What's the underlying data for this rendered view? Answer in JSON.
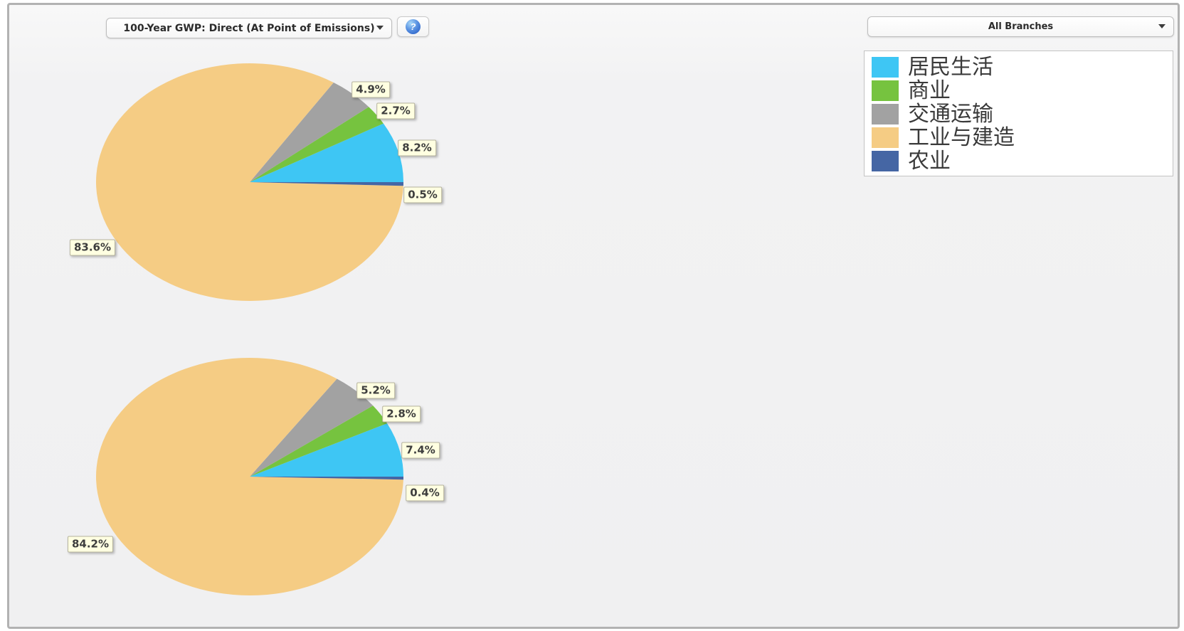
{
  "toolbar": {
    "gwp_selector_value": "100-Year GWP: Direct (At Point of Emissions)",
    "branches_selector_value": "All Branches",
    "help_icon": "help-icon"
  },
  "colors": {
    "panel_background": "#F0F0F1",
    "label_background": "#FFFFE1"
  },
  "legend": {
    "items": [
      {
        "key": "residential",
        "label": "居民生活",
        "color": "#3EC6F4"
      },
      {
        "key": "commercial",
        "label": "商业",
        "color": "#76C33F"
      },
      {
        "key": "transport",
        "label": "交通运输",
        "color": "#A2A2A2"
      },
      {
        "key": "industry",
        "label": "工业与建造",
        "color": "#F5CC84"
      },
      {
        "key": "agriculture",
        "label": "农业",
        "color": "#4566A4"
      }
    ]
  },
  "chart_data": [
    {
      "type": "pie",
      "title": "",
      "categories": [
        "居民生活",
        "商业",
        "交通运输",
        "工业与建造",
        "农业"
      ],
      "values": [
        8.2,
        2.7,
        4.9,
        83.6,
        0.5
      ],
      "data_labels": [
        "8.2%",
        "2.7%",
        "4.9%",
        "83.6%",
        "0.5%"
      ],
      "colors": [
        "#3EC6F4",
        "#76C33F",
        "#A2A2A2",
        "#F5CC84",
        "#4566A4"
      ],
      "start_angle_deg": 0,
      "direction": "counterclockwise",
      "legend_position": "top-right"
    },
    {
      "type": "pie",
      "title": "",
      "categories": [
        "居民生活",
        "商业",
        "交通运输",
        "工业与建造",
        "农业"
      ],
      "values": [
        7.4,
        2.8,
        5.2,
        84.2,
        0.4
      ],
      "data_labels": [
        "7.4%",
        "2.8%",
        "5.2%",
        "84.2%",
        "0.4%"
      ],
      "colors": [
        "#3EC6F4",
        "#76C33F",
        "#A2A2A2",
        "#F5CC84",
        "#4566A4"
      ],
      "start_angle_deg": 0,
      "direction": "counterclockwise",
      "legend_position": "top-right"
    }
  ]
}
